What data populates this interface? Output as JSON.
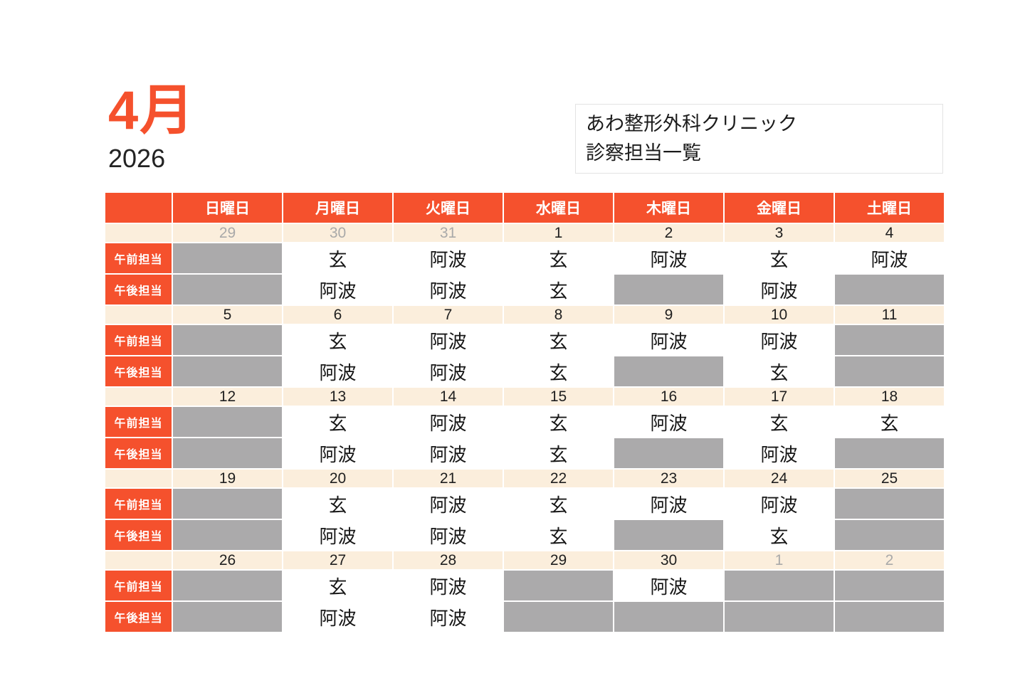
{
  "title": {
    "month": "4月",
    "year": "2026"
  },
  "clinic": {
    "name": "あわ整形外科クリニック",
    "subtitle": "診察担当一覧"
  },
  "colors": {
    "accent": "#f5512d",
    "date_row_bg": "#fbeedc",
    "off_cell_bg": "#abaaab",
    "outside_month_text": "#a9a9a9"
  },
  "staff_names": [
    "玄",
    "阿波"
  ],
  "calendar": {
    "day_headers": [
      "日曜日",
      "月曜日",
      "火曜日",
      "水曜日",
      "木曜日",
      "金曜日",
      "土曜日"
    ],
    "row_labels": {
      "morning": "午前担当",
      "afternoon": "午後担当"
    },
    "weeks": [
      {
        "dates": [
          {
            "num": "29",
            "outside": true
          },
          {
            "num": "30",
            "outside": true
          },
          {
            "num": "31",
            "outside": true
          },
          {
            "num": "1",
            "outside": false
          },
          {
            "num": "2",
            "outside": false
          },
          {
            "num": "3",
            "outside": false
          },
          {
            "num": "4",
            "outside": false
          }
        ],
        "morning": [
          null,
          "玄",
          "阿波",
          "玄",
          "阿波",
          "玄",
          "阿波"
        ],
        "afternoon": [
          null,
          "阿波",
          "阿波",
          "玄",
          null,
          "阿波",
          null
        ]
      },
      {
        "dates": [
          {
            "num": "5",
            "outside": false
          },
          {
            "num": "6",
            "outside": false
          },
          {
            "num": "7",
            "outside": false
          },
          {
            "num": "8",
            "outside": false
          },
          {
            "num": "9",
            "outside": false
          },
          {
            "num": "10",
            "outside": false
          },
          {
            "num": "11",
            "outside": false
          }
        ],
        "morning": [
          null,
          "玄",
          "阿波",
          "玄",
          "阿波",
          "阿波",
          null
        ],
        "afternoon": [
          null,
          "阿波",
          "阿波",
          "玄",
          null,
          "玄",
          null
        ]
      },
      {
        "dates": [
          {
            "num": "12",
            "outside": false
          },
          {
            "num": "13",
            "outside": false
          },
          {
            "num": "14",
            "outside": false
          },
          {
            "num": "15",
            "outside": false
          },
          {
            "num": "16",
            "outside": false
          },
          {
            "num": "17",
            "outside": false
          },
          {
            "num": "18",
            "outside": false
          }
        ],
        "morning": [
          null,
          "玄",
          "阿波",
          "玄",
          "阿波",
          "玄",
          "玄"
        ],
        "afternoon": [
          null,
          "阿波",
          "阿波",
          "玄",
          null,
          "阿波",
          null
        ]
      },
      {
        "dates": [
          {
            "num": "19",
            "outside": false
          },
          {
            "num": "20",
            "outside": false
          },
          {
            "num": "21",
            "outside": false
          },
          {
            "num": "22",
            "outside": false
          },
          {
            "num": "23",
            "outside": false
          },
          {
            "num": "24",
            "outside": false
          },
          {
            "num": "25",
            "outside": false
          }
        ],
        "morning": [
          null,
          "玄",
          "阿波",
          "玄",
          "阿波",
          "阿波",
          null
        ],
        "afternoon": [
          null,
          "阿波",
          "阿波",
          "玄",
          null,
          "玄",
          null
        ]
      },
      {
        "dates": [
          {
            "num": "26",
            "outside": false
          },
          {
            "num": "27",
            "outside": false
          },
          {
            "num": "28",
            "outside": false
          },
          {
            "num": "29",
            "outside": false
          },
          {
            "num": "30",
            "outside": false
          },
          {
            "num": "1",
            "outside": true
          },
          {
            "num": "2",
            "outside": true
          }
        ],
        "morning": [
          null,
          "玄",
          "阿波",
          null,
          "阿波",
          null,
          null
        ],
        "afternoon": [
          null,
          "阿波",
          "阿波",
          null,
          null,
          null,
          null
        ]
      }
    ]
  }
}
